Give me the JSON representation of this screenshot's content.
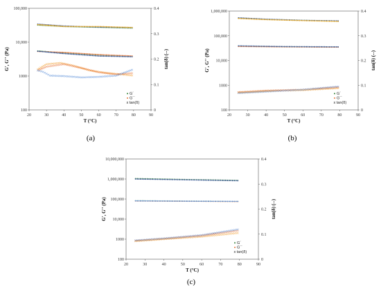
{
  "chart_data": [
    {
      "id": "a",
      "caption": "(a)",
      "type": "scatter",
      "xlabel": "T (°C)",
      "ylabel": "G', G'' (Pa)",
      "y2label": "tan(δ) (--)",
      "xlim": [
        20,
        90
      ],
      "xticks": [
        20,
        30,
        40,
        50,
        60,
        70,
        80,
        90
      ],
      "yscale": "log",
      "ylim": [
        100,
        100000
      ],
      "yticks": [
        100,
        1000,
        10000,
        100000
      ],
      "yticklabels": [
        "100",
        "1000",
        "10,000",
        "100,000"
      ],
      "y2lim": [
        0,
        0.4
      ],
      "y2ticks": [
        0,
        0.1,
        0.2,
        0.3,
        0.4
      ],
      "legend": [
        "G´",
        "G´´",
        "x tan(δ)"
      ],
      "legend_position": "lower-right",
      "series": [
        {
          "name": "G´",
          "axis": "left",
          "marker": "dot",
          "x": [
            25,
            80
          ],
          "runs": [
            {
              "color": "#2e7d32",
              "values": [
                [
                  25,
                  32000
                ],
                [
                  40,
                  29000
                ],
                [
                  60,
                  27500
                ],
                [
                  80,
                  26000
                ]
              ]
            },
            {
              "color": "#2f4f8f",
              "values": [
                [
                  25,
                  34000
                ],
                [
                  40,
                  30000
                ],
                [
                  60,
                  28000
                ],
                [
                  80,
                  27000
                ]
              ]
            },
            {
              "color": "#e8a317",
              "values": [
                [
                  25,
                  33000
                ],
                [
                  40,
                  29000
                ],
                [
                  60,
                  29000
                ],
                [
                  80,
                  27000
                ]
              ]
            }
          ]
        },
        {
          "name": "G´´",
          "axis": "left",
          "marker": "dot",
          "runs": [
            {
              "color": "#2e7d32",
              "values": [
                [
                  25,
                  5500
                ],
                [
                  40,
                  4800
                ],
                [
                  60,
                  4200
                ],
                [
                  80,
                  3800
                ]
              ]
            },
            {
              "color": "#e8743a",
              "values": [
                [
                  25,
                  5300
                ],
                [
                  40,
                  5000
                ],
                [
                  60,
                  4300
                ],
                [
                  80,
                  3900
                ]
              ]
            },
            {
              "color": "#2f4f8f",
              "values": [
                [
                  25,
                  5400
                ],
                [
                  40,
                  4600
                ],
                [
                  60,
                  3900
                ],
                [
                  80,
                  3700
                ]
              ]
            }
          ]
        },
        {
          "name": "tan(δ)",
          "axis": "right",
          "marker": "x",
          "runs": [
            {
              "color": "#f2a033",
              "values": [
                [
                  25,
                  0.16
                ],
                [
                  30,
                  0.18
                ],
                [
                  38,
                  0.185
                ],
                [
                  45,
                  0.175
                ],
                [
                  55,
                  0.155
                ],
                [
                  65,
                  0.145
                ],
                [
                  80,
                  0.135
                ]
              ]
            },
            {
              "color": "#e8743a",
              "values": [
                [
                  25,
                  0.155
                ],
                [
                  30,
                  0.17
                ],
                [
                  40,
                  0.18
                ],
                [
                  50,
                  0.165
                ],
                [
                  60,
                  0.148
                ],
                [
                  70,
                  0.14
                ],
                [
                  80,
                  0.145
                ]
              ]
            },
            {
              "color": "#5b8fd9",
              "values": [
                [
                  25,
                  0.155
                ],
                [
                  28,
                  0.15
                ],
                [
                  32,
                  0.135
                ],
                [
                  40,
                  0.133
                ],
                [
                  50,
                  0.128
                ],
                [
                  60,
                  0.13
                ],
                [
                  70,
                  0.135
                ],
                [
                  80,
                  0.16
                ]
              ]
            }
          ]
        }
      ]
    },
    {
      "id": "b",
      "caption": "(b)",
      "type": "scatter",
      "xlabel": "T (°C)",
      "ylabel": "G', G'' (Pa)",
      "y2label": "tan(δ) (--)",
      "xlim": [
        20,
        90
      ],
      "xticks": [
        20,
        30,
        40,
        50,
        60,
        70,
        80,
        90
      ],
      "yscale": "log",
      "ylim": [
        100,
        1000000
      ],
      "yticks": [
        100,
        1000,
        10000,
        100000,
        1000000
      ],
      "yticklabels": [
        "100",
        "1000",
        "10,000",
        "100,000",
        "1,000,000"
      ],
      "y2lim": [
        0,
        0.4
      ],
      "y2ticks": [
        0,
        0.1,
        0.2,
        0.3,
        0.4
      ],
      "legend": [
        "G´",
        "G´´",
        "x tan(δ)"
      ],
      "legend_position": "lower-right",
      "series": [
        {
          "name": "G´",
          "axis": "left",
          "marker": "dot",
          "runs": [
            {
              "color": "#2e7d32",
              "values": [
                [
                  25,
                  520000
                ],
                [
                  40,
                  460000
                ],
                [
                  60,
                  420000
                ],
                [
                  80,
                  390000
                ]
              ]
            },
            {
              "color": "#2f4f8f",
              "values": [
                [
                  25,
                  530000
                ],
                [
                  40,
                  470000
                ],
                [
                  60,
                  420000
                ],
                [
                  80,
                  400000
                ]
              ]
            },
            {
              "color": "#e8a317",
              "values": [
                [
                  25,
                  500000
                ],
                [
                  40,
                  450000
                ],
                [
                  60,
                  410000
                ],
                [
                  80,
                  380000
                ]
              ]
            }
          ]
        },
        {
          "name": "G´´",
          "axis": "left",
          "marker": "dot",
          "runs": [
            {
              "color": "#2e7d32",
              "values": [
                [
                  25,
                  38000
                ],
                [
                  50,
                  36000
                ],
                [
                  80,
                  35000
                ]
              ]
            },
            {
              "color": "#e8743a",
              "values": [
                [
                  25,
                  37000
                ],
                [
                  50,
                  35500
                ],
                [
                  80,
                  34500
                ]
              ]
            },
            {
              "color": "#2f4f8f",
              "values": [
                [
                  25,
                  39000
                ],
                [
                  50,
                  36500
                ],
                [
                  80,
                  35500
                ]
              ]
            }
          ]
        },
        {
          "name": "tan(δ)",
          "axis": "right",
          "marker": "x",
          "runs": [
            {
              "color": "#e8743a",
              "values": [
                [
                  25,
                  0.072
                ],
                [
                  40,
                  0.078
                ],
                [
                  60,
                  0.082
                ],
                [
                  80,
                  0.092
                ]
              ]
            },
            {
              "color": "#f2a033",
              "values": [
                [
                  25,
                  0.07
                ],
                [
                  40,
                  0.076
                ],
                [
                  60,
                  0.08
                ],
                [
                  80,
                  0.088
                ]
              ]
            },
            {
              "color": "#5b8fd9",
              "values": [
                [
                  25,
                  0.068
                ],
                [
                  40,
                  0.074
                ],
                [
                  60,
                  0.082
                ],
                [
                  80,
                  0.095
                ]
              ]
            }
          ]
        }
      ]
    },
    {
      "id": "c",
      "caption": "(c)",
      "type": "scatter",
      "xlabel": "T (°C)",
      "ylabel": "G', G'' (Pa)",
      "y2label": "tan(δ) (--)",
      "xlim": [
        20,
        90
      ],
      "xticks": [
        20,
        30,
        40,
        50,
        60,
        70,
        80,
        90
      ],
      "yscale": "log",
      "ylim": [
        100,
        10000000
      ],
      "yticks": [
        100,
        1000,
        10000,
        100000,
        1000000,
        10000000
      ],
      "yticklabels": [
        "100",
        "1000",
        "10,000",
        "100,000",
        "1,000,000",
        "10,000,000"
      ],
      "y2lim": [
        0,
        0.4
      ],
      "y2ticks": [
        0,
        0.1,
        0.2,
        0.3,
        0.4
      ],
      "legend": [
        "G´",
        "G´´",
        "x tan(δ)"
      ],
      "legend_position": "lower-right",
      "series": [
        {
          "name": "G´",
          "axis": "left",
          "marker": "dot",
          "runs": [
            {
              "color": "#2e7d32",
              "values": [
                [
                  25,
                  1050000
                ],
                [
                  50,
                  950000
                ],
                [
                  80,
                  850000
                ]
              ]
            },
            {
              "color": "#2f4f8f",
              "values": [
                [
                  25,
                  1000000
                ],
                [
                  50,
                  920000
                ],
                [
                  80,
                  820000
                ]
              ]
            }
          ]
        },
        {
          "name": "G´´",
          "axis": "left",
          "marker": "dot",
          "runs": [
            {
              "color": "#2e7d32",
              "values": [
                [
                  25,
                  82000
                ],
                [
                  50,
                  79000
                ],
                [
                  80,
                  76000
                ]
              ]
            },
            {
              "color": "#e8743a",
              "values": [
                [
                  25,
                  80000
                ],
                [
                  50,
                  78000
                ],
                [
                  80,
                  75000
                ]
              ]
            },
            {
              "color": "#5b8fd9",
              "values": [
                [
                  25,
                  81000
                ],
                [
                  50,
                  78500
                ],
                [
                  80,
                  76500
                ]
              ]
            }
          ]
        },
        {
          "name": "tan(δ)",
          "axis": "right",
          "marker": "x",
          "runs": [
            {
              "color": "#e8743a",
              "values": [
                [
                  25,
                  0.074
                ],
                [
                  40,
                  0.082
                ],
                [
                  60,
                  0.094
                ],
                [
                  80,
                  0.115
                ]
              ]
            },
            {
              "color": "#f2a033",
              "values": [
                [
                  25,
                  0.072
                ],
                [
                  40,
                  0.08
                ],
                [
                  60,
                  0.09
                ],
                [
                  80,
                  0.105
                ]
              ]
            },
            {
              "color": "#5b8fd9",
              "values": [
                [
                  25,
                  0.075
                ],
                [
                  40,
                  0.083
                ],
                [
                  60,
                  0.096
                ],
                [
                  80,
                  0.12
                ]
              ]
            }
          ]
        }
      ]
    }
  ]
}
